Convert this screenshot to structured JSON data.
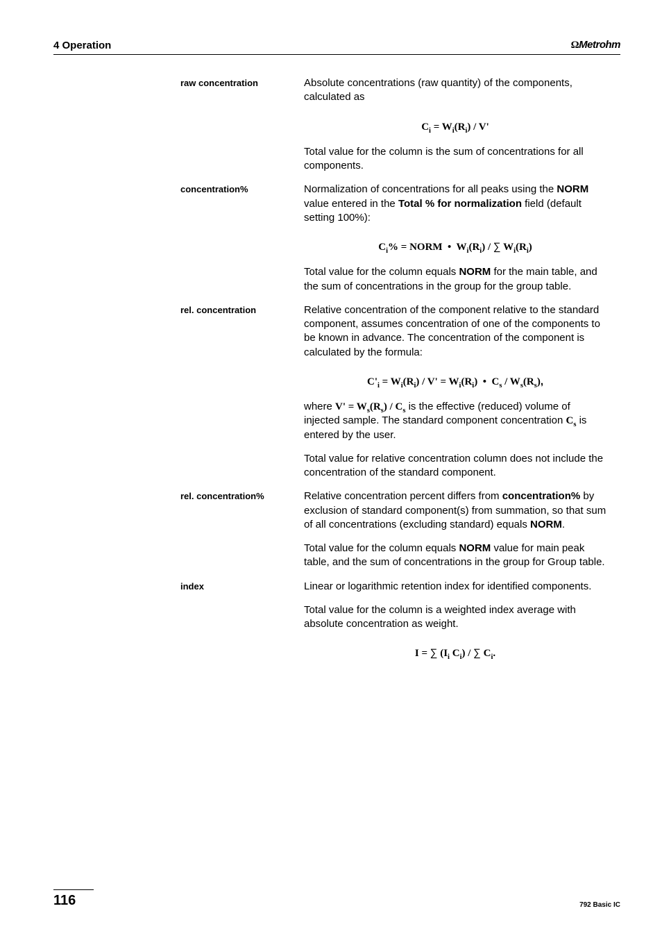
{
  "header": {
    "chapter": "4 Operation",
    "brand": "Metrohm",
    "brand_symbol": "Ω"
  },
  "items": [
    {
      "label": "raw concentration",
      "paras": [
        {
          "type": "text",
          "html": "Absolute concentrations (raw quantity) of the components, calculated as"
        },
        {
          "type": "formula",
          "html": "C<sub>i</sub> = W<sub>i</sub>(R<sub>i</sub>) / V'"
        },
        {
          "type": "text",
          "html": "Total value for the column is the sum of concentrations for all components."
        }
      ]
    },
    {
      "label": "concentration%",
      "paras": [
        {
          "type": "text",
          "html": "Normalization of concentrations for all peaks using the <span class='sans-bold'>NORM</span> value entered in the <span class='sans-bold'>Total % for normalization</span> field (default setting 100%):"
        },
        {
          "type": "formula",
          "html": "C<sub>i</sub>% = NORM &nbsp;•&nbsp; W<sub>i</sub>(R<sub>i</sub>) / <span class='sumchar'>∑</span> W<sub>i</sub>(R<sub>i</sub>)"
        },
        {
          "type": "text",
          "html": "Total value for the column equals <span class='sans-bold'>NORM</span> for the main table, and the sum of concentrations in the group for the group table."
        }
      ]
    },
    {
      "label": "rel. concentration",
      "paras": [
        {
          "type": "text",
          "html": "Relative concentration of the component relative to the standard component, assumes concentration of one of the components to be known in advance. The concentration of the component is calculated by the formula:"
        },
        {
          "type": "formula",
          "html": "C'<sub>i</sub> = W<sub>i</sub>(R<sub>i</sub>) / V' = W<sub>i</sub>(R<sub>i</sub>) &nbsp;•&nbsp; C<sub>s</sub> / W<sub>s</sub>(R<sub>s</sub>)<span style='font-family:Arial'>,</span>"
        },
        {
          "type": "text",
          "html": "where <span class='serif-bold'>V' = W<sub>s</sub>(R<sub>s</sub>) / C<sub>s</sub></span> is the effective (reduced) volume of injected sample. The standard component concentration <span class='serif-bold'>C<sub>s</sub></span> is entered by the user."
        },
        {
          "type": "text",
          "html": "Total value for relative concentration column does not include the concentration of the standard component."
        }
      ]
    },
    {
      "label": "rel. concentration%",
      "paras": [
        {
          "type": "text",
          "html": "Relative concentration percent differs from <span class='sans-bold'>concentration%</span> by exclusion of standard component(s) from summation, so that sum of all concentrations (excluding standard) equals <span class='sans-bold'>NORM</span>."
        },
        {
          "type": "text",
          "html": "Total value for the column equals <span class='sans-bold'>NORM</span> value for main peak table, and the sum of concentrations in the group for Group table."
        }
      ]
    },
    {
      "label": "index",
      "paras": [
        {
          "type": "text",
          "html": "Linear or logarithmic retention index for identified components."
        },
        {
          "type": "text",
          "html": "Total value for the column is a weighted index average with absolute concentration as weight."
        },
        {
          "type": "formula",
          "html": "I = <span class='sumchar'>∑</span> (I<sub>i</sub> C<sub>i</sub>) / <span class='sumchar'>∑</span> C<sub>i</sub>."
        }
      ]
    }
  ],
  "footer": {
    "page": "116",
    "docid": "792 Basic IC"
  }
}
